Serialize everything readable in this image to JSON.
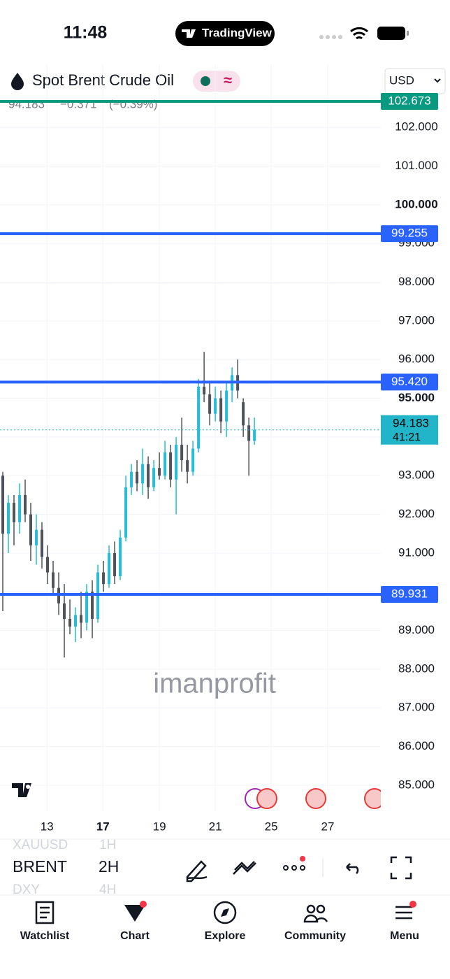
{
  "status_bar": {
    "time": "11:48",
    "app": "TradingView"
  },
  "header": {
    "symbol": "Spot Brent Crude Oil",
    "currency": "USD"
  },
  "quote": {
    "last": "94.183",
    "change": "−0.371",
    "change_pct": "(−0.39%)"
  },
  "chart_data": {
    "type": "candlestick",
    "ylim": [
      84.33,
      103.63
    ],
    "yticks": [
      {
        "value": 85,
        "label": "85.000"
      },
      {
        "value": 86,
        "label": "86.000"
      },
      {
        "value": 87,
        "label": "87.000"
      },
      {
        "value": 88,
        "label": "88.000"
      },
      {
        "value": 89,
        "label": "89.000"
      },
      {
        "value": 90,
        "label": "90.000"
      },
      {
        "value": 91,
        "label": "91.000"
      },
      {
        "value": 92,
        "label": "92.000"
      },
      {
        "value": 93,
        "label": "93.000"
      },
      {
        "value": 94,
        "label": "94.000"
      },
      {
        "value": 95,
        "label": "95.000",
        "bold": true
      },
      {
        "value": 96,
        "label": "96.000"
      },
      {
        "value": 97,
        "label": "97.000"
      },
      {
        "value": 98,
        "label": "98.000"
      },
      {
        "value": 99,
        "label": "99.000"
      },
      {
        "value": 100,
        "label": "100.000",
        "bold": true
      },
      {
        "value": 101,
        "label": "101.000"
      },
      {
        "value": 102,
        "label": "102.000"
      }
    ],
    "xlim": [
      0,
      68.1
    ],
    "xticks": [
      {
        "value": 8.4,
        "label": "13"
      },
      {
        "value": 18.4,
        "label": "17",
        "bold": true
      },
      {
        "value": 28.5,
        "label": "19"
      },
      {
        "value": 38.5,
        "label": "21"
      },
      {
        "value": 48.5,
        "label": "25"
      },
      {
        "value": 58.6,
        "label": "27"
      }
    ],
    "grid": true,
    "up_color": "#26bdd3",
    "down_color": "#4f525c",
    "ohlc": [
      [
        93.0,
        93.1,
        89.5,
        91.5
      ],
      [
        91.5,
        92.5,
        91.0,
        92.3
      ],
      [
        92.3,
        92.5,
        91.2,
        91.8
      ],
      [
        91.8,
        92.8,
        91.5,
        92.5
      ],
      [
        92.5,
        92.9,
        91.8,
        92.0
      ],
      [
        92.0,
        92.3,
        90.8,
        91.2
      ],
      [
        91.2,
        92.0,
        90.7,
        91.6
      ],
      [
        91.6,
        91.8,
        90.6,
        90.9
      ],
      [
        90.9,
        91.2,
        90.2,
        90.5
      ],
      [
        90.5,
        90.8,
        89.9,
        90.1
      ],
      [
        90.1,
        90.5,
        89.4,
        89.7
      ],
      [
        89.7,
        90.2,
        88.3,
        89.3
      ],
      [
        89.3,
        89.8,
        88.9,
        89.1
      ],
      [
        89.1,
        89.6,
        88.7,
        89.4
      ],
      [
        89.4,
        90.0,
        88.8,
        89.2
      ],
      [
        89.2,
        90.2,
        89.0,
        90.0
      ],
      [
        90.0,
        90.3,
        88.8,
        89.3
      ],
      [
        89.3,
        90.7,
        89.2,
        90.5
      ],
      [
        90.5,
        90.8,
        90.0,
        90.2
      ],
      [
        90.2,
        91.2,
        90.1,
        91.0
      ],
      [
        91.0,
        91.3,
        90.2,
        90.4
      ],
      [
        90.4,
        91.6,
        90.3,
        91.4
      ],
      [
        91.4,
        93.0,
        91.3,
        92.7
      ],
      [
        92.7,
        93.3,
        92.5,
        93.1
      ],
      [
        93.1,
        93.4,
        92.6,
        92.8
      ],
      [
        92.8,
        93.7,
        92.5,
        93.3
      ],
      [
        93.3,
        93.5,
        92.4,
        92.7
      ],
      [
        92.7,
        93.4,
        92.6,
        93.2
      ],
      [
        93.2,
        93.6,
        92.9,
        93.0
      ],
      [
        93.0,
        93.9,
        92.9,
        93.6
      ],
      [
        93.6,
        93.8,
        92.7,
        92.9
      ],
      [
        92.9,
        94.0,
        92.0,
        93.8
      ],
      [
        93.8,
        94.5,
        93.1,
        93.4
      ],
      [
        93.4,
        93.8,
        92.8,
        93.1
      ],
      [
        93.1,
        93.9,
        93.0,
        93.7
      ],
      [
        93.7,
        95.5,
        93.6,
        95.3
      ],
      [
        95.3,
        96.2,
        94.9,
        95.1
      ],
      [
        95.1,
        95.4,
        94.3,
        94.6
      ],
      [
        94.6,
        95.3,
        94.4,
        95.0
      ],
      [
        95.0,
        95.2,
        94.1,
        94.4
      ],
      [
        94.4,
        95.4,
        94.0,
        95.2
      ],
      [
        95.2,
        95.8,
        94.9,
        95.6
      ],
      [
        95.6,
        96.0,
        95.0,
        95.2
      ],
      [
        94.9,
        95.0,
        94.0,
        94.3
      ],
      [
        94.3,
        94.5,
        93.0,
        93.9
      ],
      [
        93.9,
        94.5,
        93.8,
        94.183
      ]
    ],
    "levels": [
      {
        "value": 102.673,
        "label": "102.673",
        "color": "#089981"
      },
      {
        "value": 99.255,
        "label": "99.255",
        "color": "#2962ff"
      },
      {
        "value": 95.42,
        "label": "95.420",
        "color": "#2962ff"
      },
      {
        "value": 89.931,
        "label": "89.931",
        "color": "#2962ff"
      }
    ],
    "price": {
      "value": 94.183,
      "label": "94.183",
      "countdown": "41:21",
      "color": "#22b5c9"
    },
    "watermark": "imanprofit"
  },
  "toolbar": {
    "symbols": [
      "XAUUSD",
      "BRENT",
      "DXY"
    ],
    "intervals": [
      "1H",
      "2H",
      "4H"
    ]
  },
  "nav": [
    "Watchlist",
    "Chart",
    "Explore",
    "Community",
    "Menu"
  ]
}
